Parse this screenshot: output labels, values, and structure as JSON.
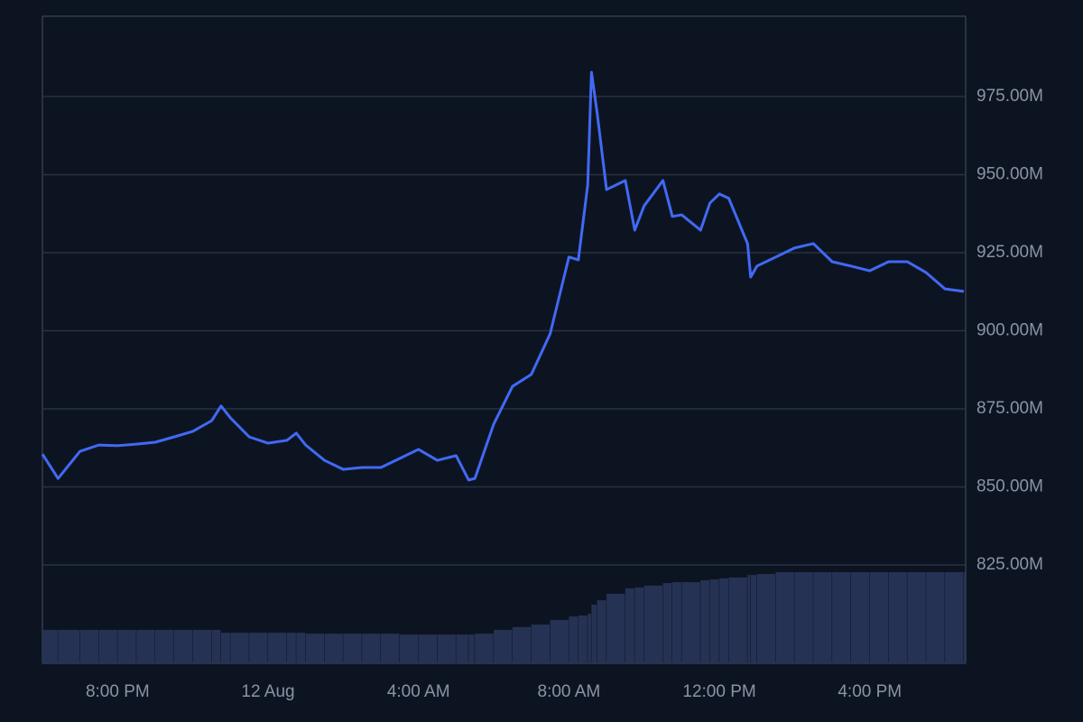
{
  "chart_data": {
    "type": "line",
    "x": [
      "08-11 18:00",
      "08-11 18:25",
      "08-11 19:00",
      "08-11 19:30",
      "08-11 20:00",
      "08-11 20:30",
      "08-11 21:00",
      "08-11 21:30",
      "08-11 22:00",
      "08-11 22:30",
      "08-11 22:45",
      "08-11 23:00",
      "08-11 23:30",
      "08-12 00:00",
      "08-12 00:30",
      "08-12 00:45",
      "08-12 01:00",
      "08-12 01:30",
      "08-12 02:00",
      "08-12 02:30",
      "08-12 03:00",
      "08-12 03:30",
      "08-12 04:00",
      "08-12 04:30",
      "08-12 05:00",
      "08-12 05:20",
      "08-12 05:30",
      "08-12 06:00",
      "08-12 06:30",
      "08-12 07:00",
      "08-12 07:30",
      "08-12 08:00",
      "08-12 08:15",
      "08-12 08:30",
      "08-12 08:36",
      "08-12 08:45",
      "08-12 09:00",
      "08-12 09:30",
      "08-12 09:45",
      "08-12 10:00",
      "08-12 10:30",
      "08-12 10:45",
      "08-12 11:00",
      "08-12 11:30",
      "08-12 11:45",
      "08-12 12:00",
      "08-12 12:15",
      "08-12 12:45",
      "08-12 12:50",
      "08-12 13:00",
      "08-12 13:30",
      "08-12 14:00",
      "08-12 14:30",
      "08-12 15:00",
      "08-12 15:30",
      "08-12 16:00",
      "08-12 16:30",
      "08-12 17:00",
      "08-12 17:30",
      "08-12 18:00",
      "08-12 18:30"
    ],
    "series": [
      {
        "type": "line",
        "color": "#4169f5",
        "values": [
          860500000,
          852700000,
          861400000,
          863400000,
          863200000,
          863700000,
          864300000,
          866000000,
          867800000,
          871200000,
          875900000,
          872100000,
          866000000,
          864000000,
          864900000,
          867200000,
          863400000,
          858500000,
          855600000,
          856200000,
          856200000,
          859100000,
          862000000,
          858500000,
          860000000,
          852200000,
          852700000,
          870100000,
          882200000,
          886000000,
          899000000,
          923600000,
          922700000,
          946700000,
          982800000,
          969800000,
          945200000,
          948100000,
          932200000,
          940000000,
          948100000,
          936600000,
          937100000,
          932200000,
          940900000,
          943800000,
          942400000,
          927900000,
          917200000,
          920700000,
          923600000,
          926500000,
          927900000,
          922100000,
          920700000,
          919200000,
          922100000,
          922100000,
          918600000,
          913400000,
          912600000
        ]
      },
      {
        "type": "bar",
        "color": "#263254",
        "values": [
          804200000,
          804200000,
          804200000,
          804200000,
          804200000,
          804200000,
          804200000,
          804200000,
          804200000,
          804200000,
          803300000,
          803300000,
          803300000,
          803300000,
          803300000,
          803300000,
          803000000,
          803000000,
          803000000,
          803000000,
          803000000,
          802700000,
          802700000,
          802700000,
          802700000,
          802700000,
          803000000,
          804200000,
          805100000,
          805900000,
          807400000,
          808500000,
          808800000,
          809400000,
          812300000,
          813700000,
          815800000,
          817500000,
          817800000,
          818400000,
          819200000,
          819500000,
          819500000,
          820100000,
          820400000,
          820700000,
          821000000,
          821800000,
          821800000,
          822100000,
          822700000,
          822700000,
          822700000,
          822700000,
          822700000,
          822700000,
          822700000,
          822700000,
          822700000,
          822700000,
          822700000
        ]
      }
    ],
    "xlim": [
      "08-11 18:00",
      "08-12 18:33"
    ],
    "xticks": [
      {
        "value": "08-11 20:00",
        "label": "8:00 PM"
      },
      {
        "value": "08-12 00:00",
        "label": "12 Aug"
      },
      {
        "value": "08-12 04:00",
        "label": "4:00 AM"
      },
      {
        "value": "08-12 08:00",
        "label": "8:00 AM"
      },
      {
        "value": "08-12 12:00",
        "label": "12:00 PM"
      },
      {
        "value": "08-12 16:00",
        "label": "4:00 PM"
      }
    ],
    "ylim": [
      793500000,
      1000700000
    ],
    "yticks": [
      {
        "value": 825000000,
        "label": "825.00M"
      },
      {
        "value": 850000000,
        "label": "850.00M"
      },
      {
        "value": 875000000,
        "label": "875.00M"
      },
      {
        "value": 900000000,
        "label": "900.00M"
      },
      {
        "value": 925000000,
        "label": "925.00M"
      },
      {
        "value": 950000000,
        "label": "950.00M"
      },
      {
        "value": 975000000,
        "label": "975.00M"
      }
    ],
    "grid": true
  }
}
